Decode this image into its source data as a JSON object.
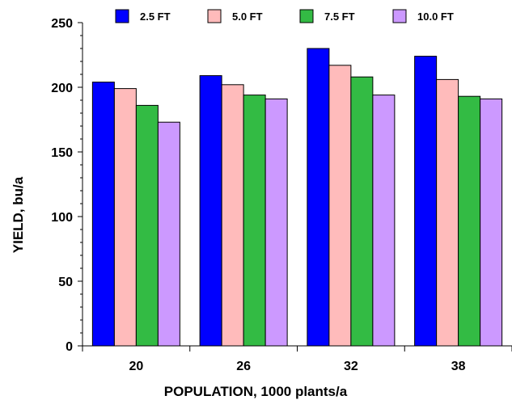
{
  "chart_data": {
    "type": "bar",
    "title": "",
    "xlabel": "POPULATION, 1000 plants/a",
    "ylabel": "YIELD, bu/a",
    "categories": [
      "20",
      "26",
      "32",
      "38"
    ],
    "ylim": [
      0,
      250
    ],
    "yticks": [
      0,
      50,
      100,
      150,
      200,
      250
    ],
    "grid": false,
    "legend_position": "top",
    "series": [
      {
        "name": "2.5 FT",
        "color": "#0000ff",
        "values": [
          204,
          209,
          230,
          224
        ]
      },
      {
        "name": "5.0 FT",
        "color": "#ffbbbb",
        "values": [
          199,
          202,
          217,
          206
        ]
      },
      {
        "name": "7.5 FT",
        "color": "#33bb44",
        "values": [
          186,
          194,
          208,
          193
        ]
      },
      {
        "name": "10.0 FT",
        "color": "#cc99ff",
        "values": [
          173,
          191,
          194,
          191
        ]
      }
    ]
  }
}
